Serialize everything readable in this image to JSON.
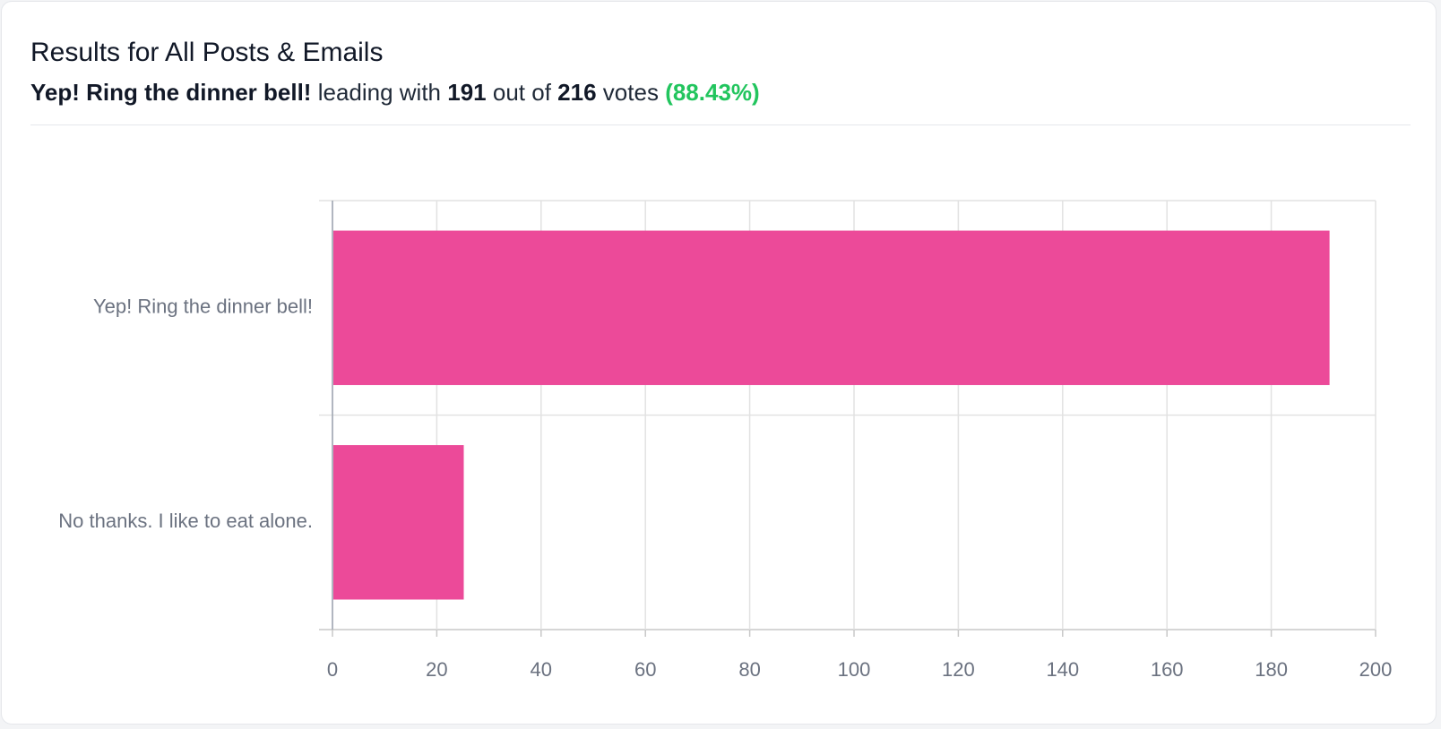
{
  "summary": [
    "Yep! Ring the dinner bell!",
    "leading with",
    "191",
    "out of",
    "216",
    "votes",
    "(88.43%)"
  ],
  "chart_data": {
    "type": "bar",
    "orientation": "horizontal",
    "title": "Results for All Posts & Emails",
    "categories": [
      "Yep! Ring the dinner bell!",
      "No thanks. I like to eat alone."
    ],
    "values": [
      191,
      25
    ],
    "color": "#ec4a99",
    "xlim": [
      0,
      200
    ],
    "xticks": [
      0,
      20,
      40,
      60,
      80,
      100,
      120,
      140,
      160,
      180,
      200
    ],
    "grid": true
  }
}
